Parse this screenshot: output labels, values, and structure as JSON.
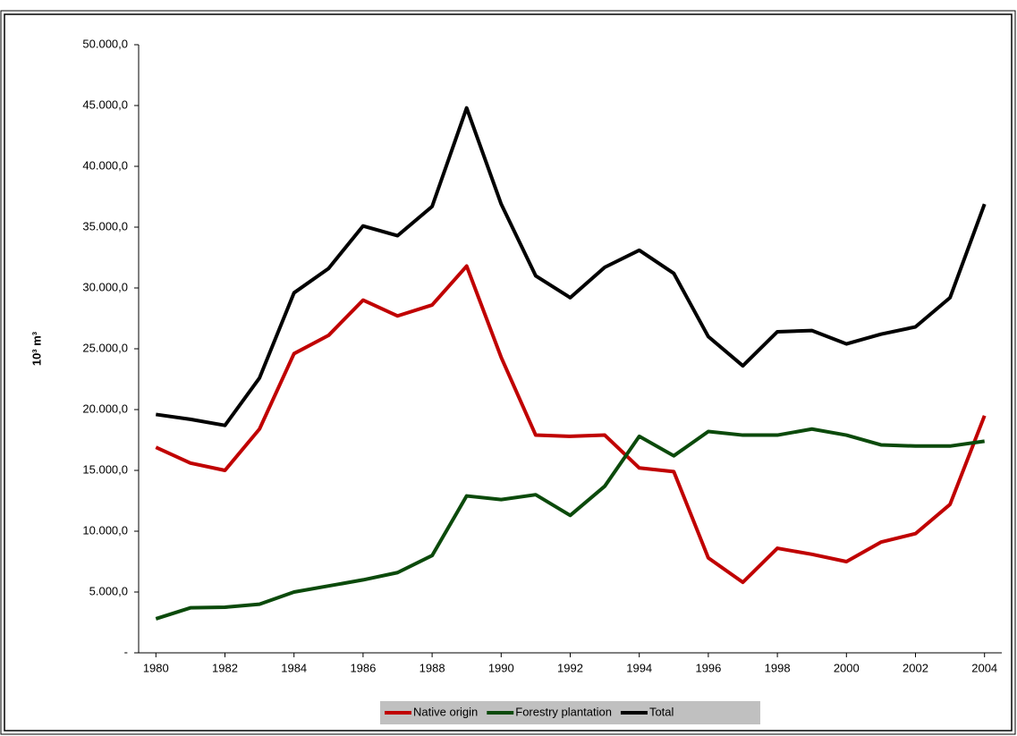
{
  "chart_data": {
    "type": "line",
    "y_label": "10³ m³",
    "x": [
      1980,
      1981,
      1982,
      1983,
      1984,
      1985,
      1986,
      1987,
      1988,
      1989,
      1990,
      1991,
      1992,
      1993,
      1994,
      1995,
      1996,
      1997,
      1998,
      1999,
      2000,
      2001,
      2002,
      2003,
      2004
    ],
    "series": [
      {
        "name": "Native origin",
        "color": "#c00000",
        "values": [
          16900,
          15600,
          15000,
          18400,
          24600,
          26100,
          29000,
          27700,
          28600,
          31800,
          24300,
          17900,
          17800,
          17900,
          15200,
          14900,
          7800,
          5800,
          8600,
          8100,
          7500,
          9100,
          9800,
          12200,
          19500
        ]
      },
      {
        "name": "Forestry plantation",
        "color": "#0b4a0b",
        "values": [
          2800,
          3700,
          3750,
          4000,
          5000,
          5500,
          6000,
          6600,
          8000,
          12900,
          12600,
          13000,
          11300,
          13700,
          17800,
          16200,
          18200,
          17900,
          17900,
          18400,
          17900,
          17100,
          17000,
          17000,
          17400
        ]
      },
      {
        "name": "Total",
        "color": "#000000",
        "values": [
          19600,
          19200,
          18700,
          22600,
          29600,
          31600,
          35100,
          34300,
          36700,
          44800,
          36900,
          31000,
          29200,
          31700,
          33100,
          31200,
          26000,
          23600,
          26400,
          26500,
          25400,
          26200,
          26800,
          29200,
          36900
        ]
      }
    ],
    "xlim": [
      1979.5,
      2004.5
    ],
    "xticks": [
      1980,
      1982,
      1984,
      1986,
      1988,
      1990,
      1992,
      1994,
      1996,
      1998,
      2000,
      2002,
      2004
    ],
    "ylim": [
      0,
      50000
    ],
    "yticks": [
      {
        "value": 0,
        "label": "-"
      },
      {
        "value": 5000,
        "label": "5.000,0"
      },
      {
        "value": 10000,
        "label": "10.000,0"
      },
      {
        "value": 15000,
        "label": "15.000,0"
      },
      {
        "value": 20000,
        "label": "20.000,0"
      },
      {
        "value": 25000,
        "label": "25.000,0"
      },
      {
        "value": 30000,
        "label": "30.000,0"
      },
      {
        "value": 35000,
        "label": "35.000,0"
      },
      {
        "value": 40000,
        "label": "40.000,0"
      },
      {
        "value": 45000,
        "label": "45.000,0"
      },
      {
        "value": 50000,
        "label": "50.000,0"
      }
    ],
    "grid": false,
    "legend": "bottom"
  }
}
